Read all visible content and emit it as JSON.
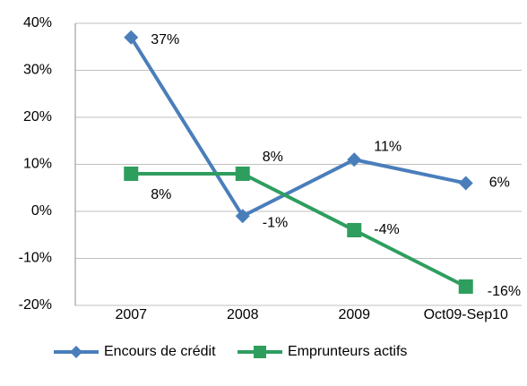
{
  "chart_data": {
    "type": "line",
    "categories": [
      "2007",
      "2008",
      "2009",
      "Oct09-Sep10"
    ],
    "series": [
      {
        "name": "Encours de crédit",
        "color": "#4a7ebb",
        "marker": "diamond",
        "values": [
          37,
          -1,
          11,
          6
        ],
        "value_labels": [
          "37%",
          "-1%",
          "11%",
          "6%"
        ]
      },
      {
        "name": "Emprunteurs actifs",
        "color": "#2e9e5e",
        "marker": "square",
        "values": [
          8,
          8,
          -4,
          -16
        ],
        "value_labels": [
          "8%",
          "8%",
          "-4%",
          "-16%"
        ]
      }
    ],
    "ylim": [
      -20,
      40
    ],
    "yticks": [
      {
        "value": -20,
        "label": "-20%"
      },
      {
        "value": -10,
        "label": "-10%"
      },
      {
        "value": 0,
        "label": "0%"
      },
      {
        "value": 10,
        "label": "10%"
      },
      {
        "value": 20,
        "label": "20%"
      },
      {
        "value": 30,
        "label": "30%"
      },
      {
        "value": 40,
        "label": "40%"
      }
    ],
    "grid": true,
    "legend": "bottom"
  }
}
